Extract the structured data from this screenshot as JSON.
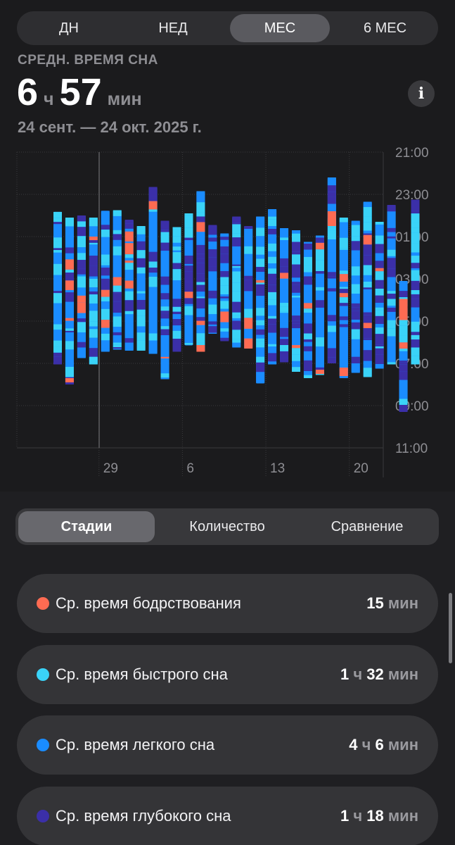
{
  "period_tabs": [
    {
      "label": "ДН",
      "active": false
    },
    {
      "label": "НЕД",
      "active": false
    },
    {
      "label": "МЕС",
      "active": true
    },
    {
      "label": "6 МЕС",
      "active": false
    }
  ],
  "summary": {
    "label": "СРЕДН. ВРЕМЯ СНА",
    "hours": "6",
    "hours_unit": "ч",
    "minutes": "57",
    "minutes_unit": "мин",
    "date_range": "24 сент. — 24 окт. 2025 г.",
    "info_icon": "info-icon"
  },
  "colors": {
    "awake": "#ff6b52",
    "rem": "#3ad3f8",
    "core": "#1a8cff",
    "deep": "#3b2fa8"
  },
  "chart_data": {
    "type": "bar",
    "y_ticks": [
      "21:00",
      "23:00",
      "01:00",
      "03:00",
      "05:00",
      "07:00",
      "09:00",
      "11:00"
    ],
    "x_ticks": [
      {
        "label": "29",
        "day": 5
      },
      {
        "label": "6",
        "day": 12
      },
      {
        "label": "13",
        "day": 19
      },
      {
        "label": "20",
        "day": 26
      }
    ],
    "y_range_hours": [
      21,
      35
    ],
    "bars": [
      {
        "day": 0,
        "start": 23.83,
        "end": 31.05
      },
      {
        "day": 1,
        "start": 24.1,
        "end": 32.0
      },
      {
        "day": 2,
        "start": 24.0,
        "end": 30.75
      },
      {
        "day": 3,
        "start": 24.1,
        "end": 31.05
      },
      {
        "day": 4,
        "start": 23.78,
        "end": 30.45
      },
      {
        "day": 5,
        "start": 23.75,
        "end": 30.35
      },
      {
        "day": 6,
        "start": 24.2,
        "end": 30.4
      },
      {
        "day": 7,
        "start": 24.5,
        "end": 30.4
      },
      {
        "day": 8,
        "start": 22.65,
        "end": 30.55
      },
      {
        "day": 9,
        "start": 24.25,
        "end": 31.75
      },
      {
        "day": 10,
        "start": 24.55,
        "end": 30.45
      },
      {
        "day": 11,
        "start": 23.9,
        "end": 30.15
      },
      {
        "day": 12,
        "start": 22.85,
        "end": 30.45
      },
      {
        "day": 13,
        "start": 24.45,
        "end": 29.6
      },
      {
        "day": 14,
        "start": 24.85,
        "end": 29.95
      },
      {
        "day": 15,
        "start": 24.05,
        "end": 30.25
      },
      {
        "day": 16,
        "start": 24.5,
        "end": 30.3
      },
      {
        "day": 17,
        "start": 24.05,
        "end": 31.95
      },
      {
        "day": 18,
        "start": 23.7,
        "end": 31.05
      },
      {
        "day": 19,
        "start": 24.6,
        "end": 30.95
      },
      {
        "day": 20,
        "start": 24.7,
        "end": 31.4
      },
      {
        "day": 21,
        "start": 25.25,
        "end": 31.7
      },
      {
        "day": 22,
        "start": 24.95,
        "end": 31.55
      },
      {
        "day": 23,
        "start": 22.2,
        "end": 31.0
      },
      {
        "day": 24,
        "start": 24.1,
        "end": 31.7
      },
      {
        "day": 25,
        "start": 24.25,
        "end": 31.45
      },
      {
        "day": 26,
        "start": 23.35,
        "end": 31.65
      },
      {
        "day": 27,
        "start": 24.3,
        "end": 31.25
      },
      {
        "day": 28,
        "start": 23.5,
        "end": 31.05
      },
      {
        "day": 29,
        "start": 27.1,
        "end": 33.3
      },
      {
        "day": 30,
        "start": 23.25,
        "end": 31.05
      }
    ]
  },
  "stage_tabs": [
    {
      "label": "Стадии",
      "active": true
    },
    {
      "label": "Количество",
      "active": false
    },
    {
      "label": "Сравнение",
      "active": false
    }
  ],
  "stages": [
    {
      "label": "Ср. время бодрствования",
      "color": "#ff6b52",
      "v1": "15",
      "u1": "мин",
      "v2": "",
      "u2": ""
    },
    {
      "label": "Ср. время быстрого сна",
      "color": "#3ad3f8",
      "v1": "1",
      "u1": "ч",
      "v2": "32",
      "u2": "мин"
    },
    {
      "label": "Ср. время легкого сна",
      "color": "#1a8cff",
      "v1": "4",
      "u1": "ч",
      "v2": "6",
      "u2": "мин"
    },
    {
      "label": "Ср. время глубокого сна",
      "color": "#3b2fa8",
      "v1": "1",
      "u1": "ч",
      "v2": "18",
      "u2": "мин"
    }
  ]
}
